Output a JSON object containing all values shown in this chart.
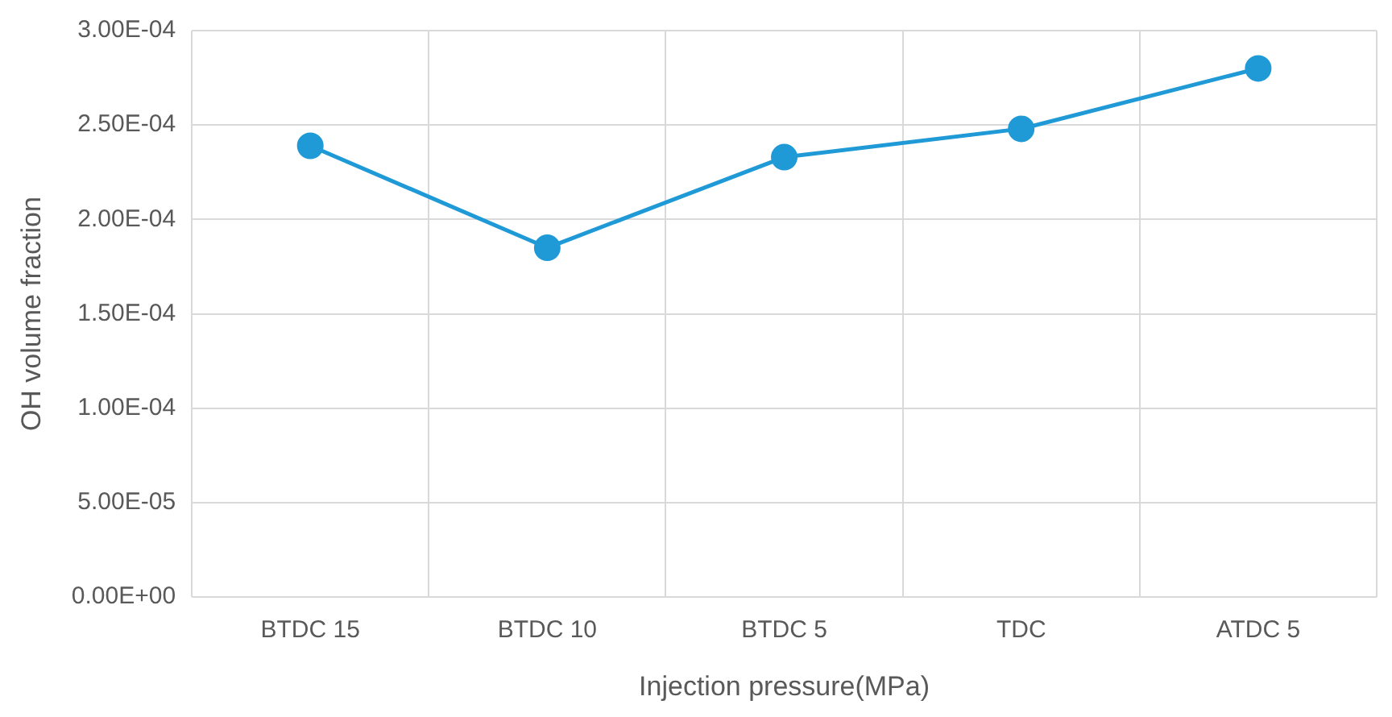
{
  "chart_data": {
    "type": "line",
    "xlabel": "Injection pressure(MPa)",
    "ylabel": "OH volume fraction",
    "categories": [
      "BTDC 15",
      "BTDC 10",
      "BTDC 5",
      "TDC",
      "ATDC 5"
    ],
    "series": [
      {
        "color": "#1f9ad6",
        "values": [
          0.000239,
          0.000185,
          0.000233,
          0.000248,
          0.00028
        ]
      }
    ],
    "ylim": [
      0,
      0.0003
    ],
    "yticks": [
      {
        "value": 0,
        "label": "0.00E+00"
      },
      {
        "value": 5e-05,
        "label": "5.00E-05"
      },
      {
        "value": 0.0001,
        "label": "1.00E-04"
      },
      {
        "value": 0.00015,
        "label": "1.50E-04"
      },
      {
        "value": 0.0002,
        "label": "2.00E-04"
      },
      {
        "value": 0.00025,
        "label": "2.50E-04"
      },
      {
        "value": 0.0003,
        "label": "3.00E-04"
      }
    ],
    "grid": true,
    "legend": false,
    "marker": "circle",
    "line_style": "solid"
  }
}
